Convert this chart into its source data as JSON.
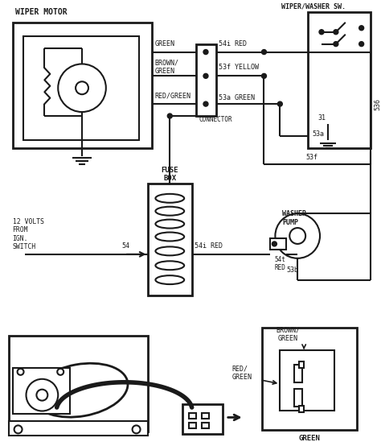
{
  "bg_color": "#ffffff",
  "line_color": "#1a1a1a",
  "text_color": "#1a1a1a",
  "components": {
    "wiper_motor_label": "WIPER MOTOR",
    "wiper_washer_label": "WIPER/WASHER SW.",
    "fuse_box_label": "FUSE\nBOX",
    "washer_pump_label": "WASHER\nPUMP",
    "connector_label": "CONNECTOR",
    "wire_green": "GREEN",
    "wire_brown_green": "BROWN/\nGREEN",
    "wire_red_green": "RED/GREEN",
    "wire_54i_red": "54i RED",
    "wire_53f_yellow": "53f YELLOW",
    "wire_53a_green": "53a GREEN",
    "wire_54": "54",
    "wire_54i_red2": "54i RED",
    "wire_54t_red": "54t\nRED",
    "label_31": "31",
    "label_53a": "53a",
    "label_53f": "53f",
    "label_536": "536",
    "label_53b": "53b",
    "label_12v": "12 VOLTS\nFROM\nIGN.\nSWITCH",
    "label_brown_green2": "BROWN/\nGREEN",
    "label_red_green2": "RED/\nGREEN",
    "label_green2": "GREEN"
  }
}
